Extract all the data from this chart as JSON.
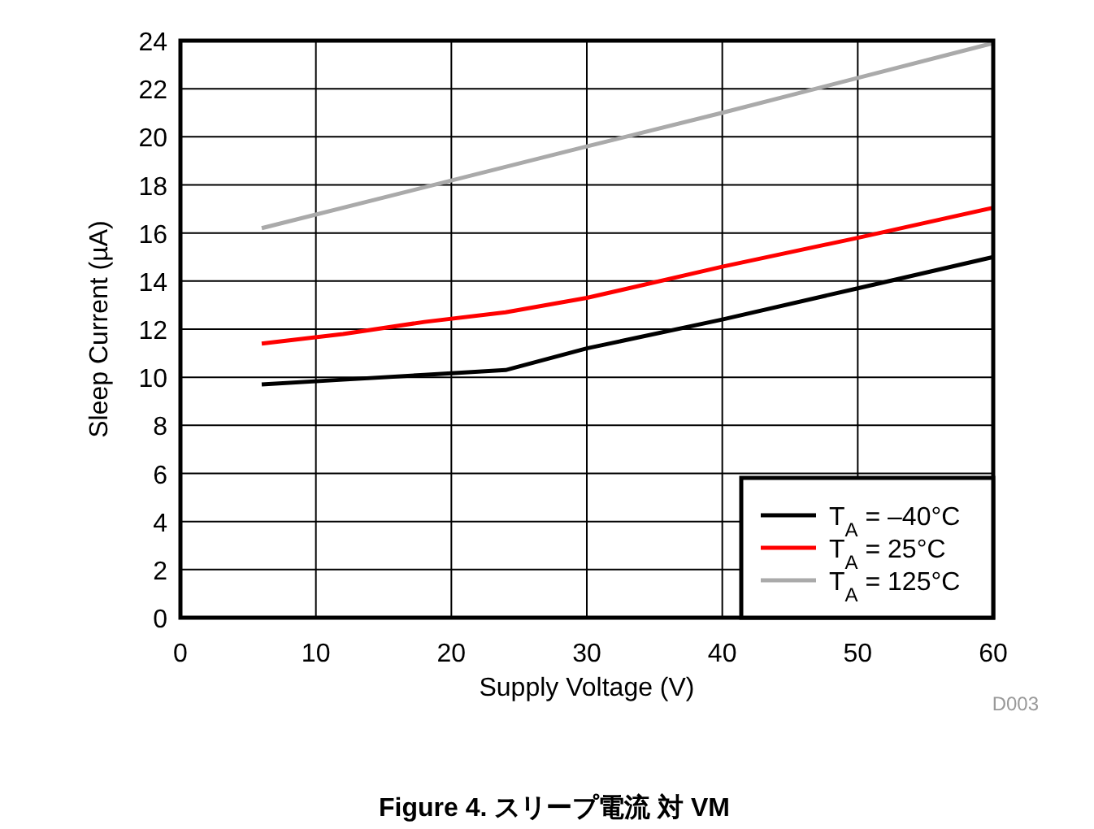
{
  "chart_data": {
    "type": "line",
    "title": "Figure 4. スリープ電流 対 VM",
    "xlabel": "Supply Voltage (V)",
    "ylabel": "Sleep Current (µA)",
    "annotations": [
      "D003"
    ],
    "xlim": [
      0,
      60
    ],
    "xticks": [
      0,
      10,
      20,
      30,
      40,
      50,
      60
    ],
    "ylim": [
      0,
      24
    ],
    "yticks": [
      0,
      2,
      4,
      6,
      8,
      10,
      12,
      14,
      16,
      18,
      20,
      22,
      24
    ],
    "grid": true,
    "legend": "bottom right",
    "line_style": "solid",
    "marker": "none",
    "series": [
      {
        "name": "T$_{A}$ = –40°C",
        "color": "#000000",
        "x": [
          6,
          12,
          18,
          24,
          30,
          40,
          50,
          60
        ],
        "values": [
          9.7,
          9.9,
          10.1,
          10.3,
          11.2,
          12.4,
          13.7,
          15.0
        ]
      },
      {
        "name": "T$_{A}$ = 25°C",
        "color": "#ff0000",
        "x": [
          6,
          12,
          18,
          24,
          30,
          40,
          50,
          60
        ],
        "values": [
          11.4,
          11.8,
          12.3,
          12.7,
          13.3,
          14.6,
          15.8,
          17.05
        ]
      },
      {
        "name": "T$_{A}$ = 125°C",
        "color": "#aaaaaa",
        "x": [
          6,
          30,
          40,
          60
        ],
        "values": [
          16.2,
          19.6,
          21.0,
          23.9
        ]
      }
    ]
  }
}
